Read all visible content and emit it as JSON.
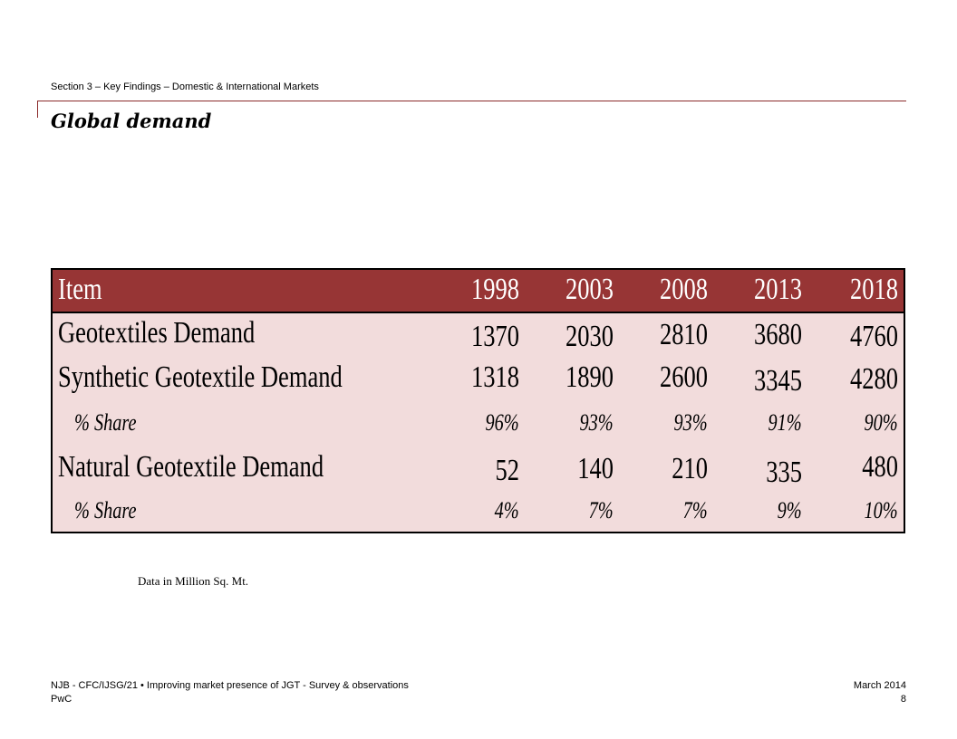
{
  "header": {
    "section": "Section 3 – Key Findings – Domestic & International Markets",
    "title": "Global demand"
  },
  "table": {
    "columns": [
      "Item",
      "1998",
      "2003",
      "2008",
      "2013",
      "2018"
    ],
    "rows": [
      {
        "label": "Geotextiles Demand",
        "values": [
          "1370",
          "2030",
          "2810",
          "3680",
          "4760"
        ]
      },
      {
        "label": "Synthetic Geotextile Demand",
        "values": [
          "1318",
          "1890",
          "2600",
          "3345",
          "4280"
        ]
      },
      {
        "label": "% Share",
        "values": [
          "96%",
          "93%",
          "93%",
          "91%",
          "90%"
        ]
      },
      {
        "label": "Natural Geotextile Demand",
        "values": [
          "52",
          "140",
          "210",
          "335",
          "480"
        ]
      },
      {
        "label": "% Share",
        "values": [
          "4%",
          "7%",
          "7%",
          "9%",
          "10%"
        ]
      }
    ]
  },
  "note": "Data in Million Sq. Mt.",
  "footer": {
    "project": "NJB - CFC/IJSG/21 • Improving market presence of JGT - Survey & observations",
    "company": "PwC",
    "date": "March 2014",
    "page": "8"
  },
  "colors": {
    "header_fill": "#973535",
    "body_fill": "#f2dcdc",
    "accent_rule": "#8b2a2a"
  }
}
